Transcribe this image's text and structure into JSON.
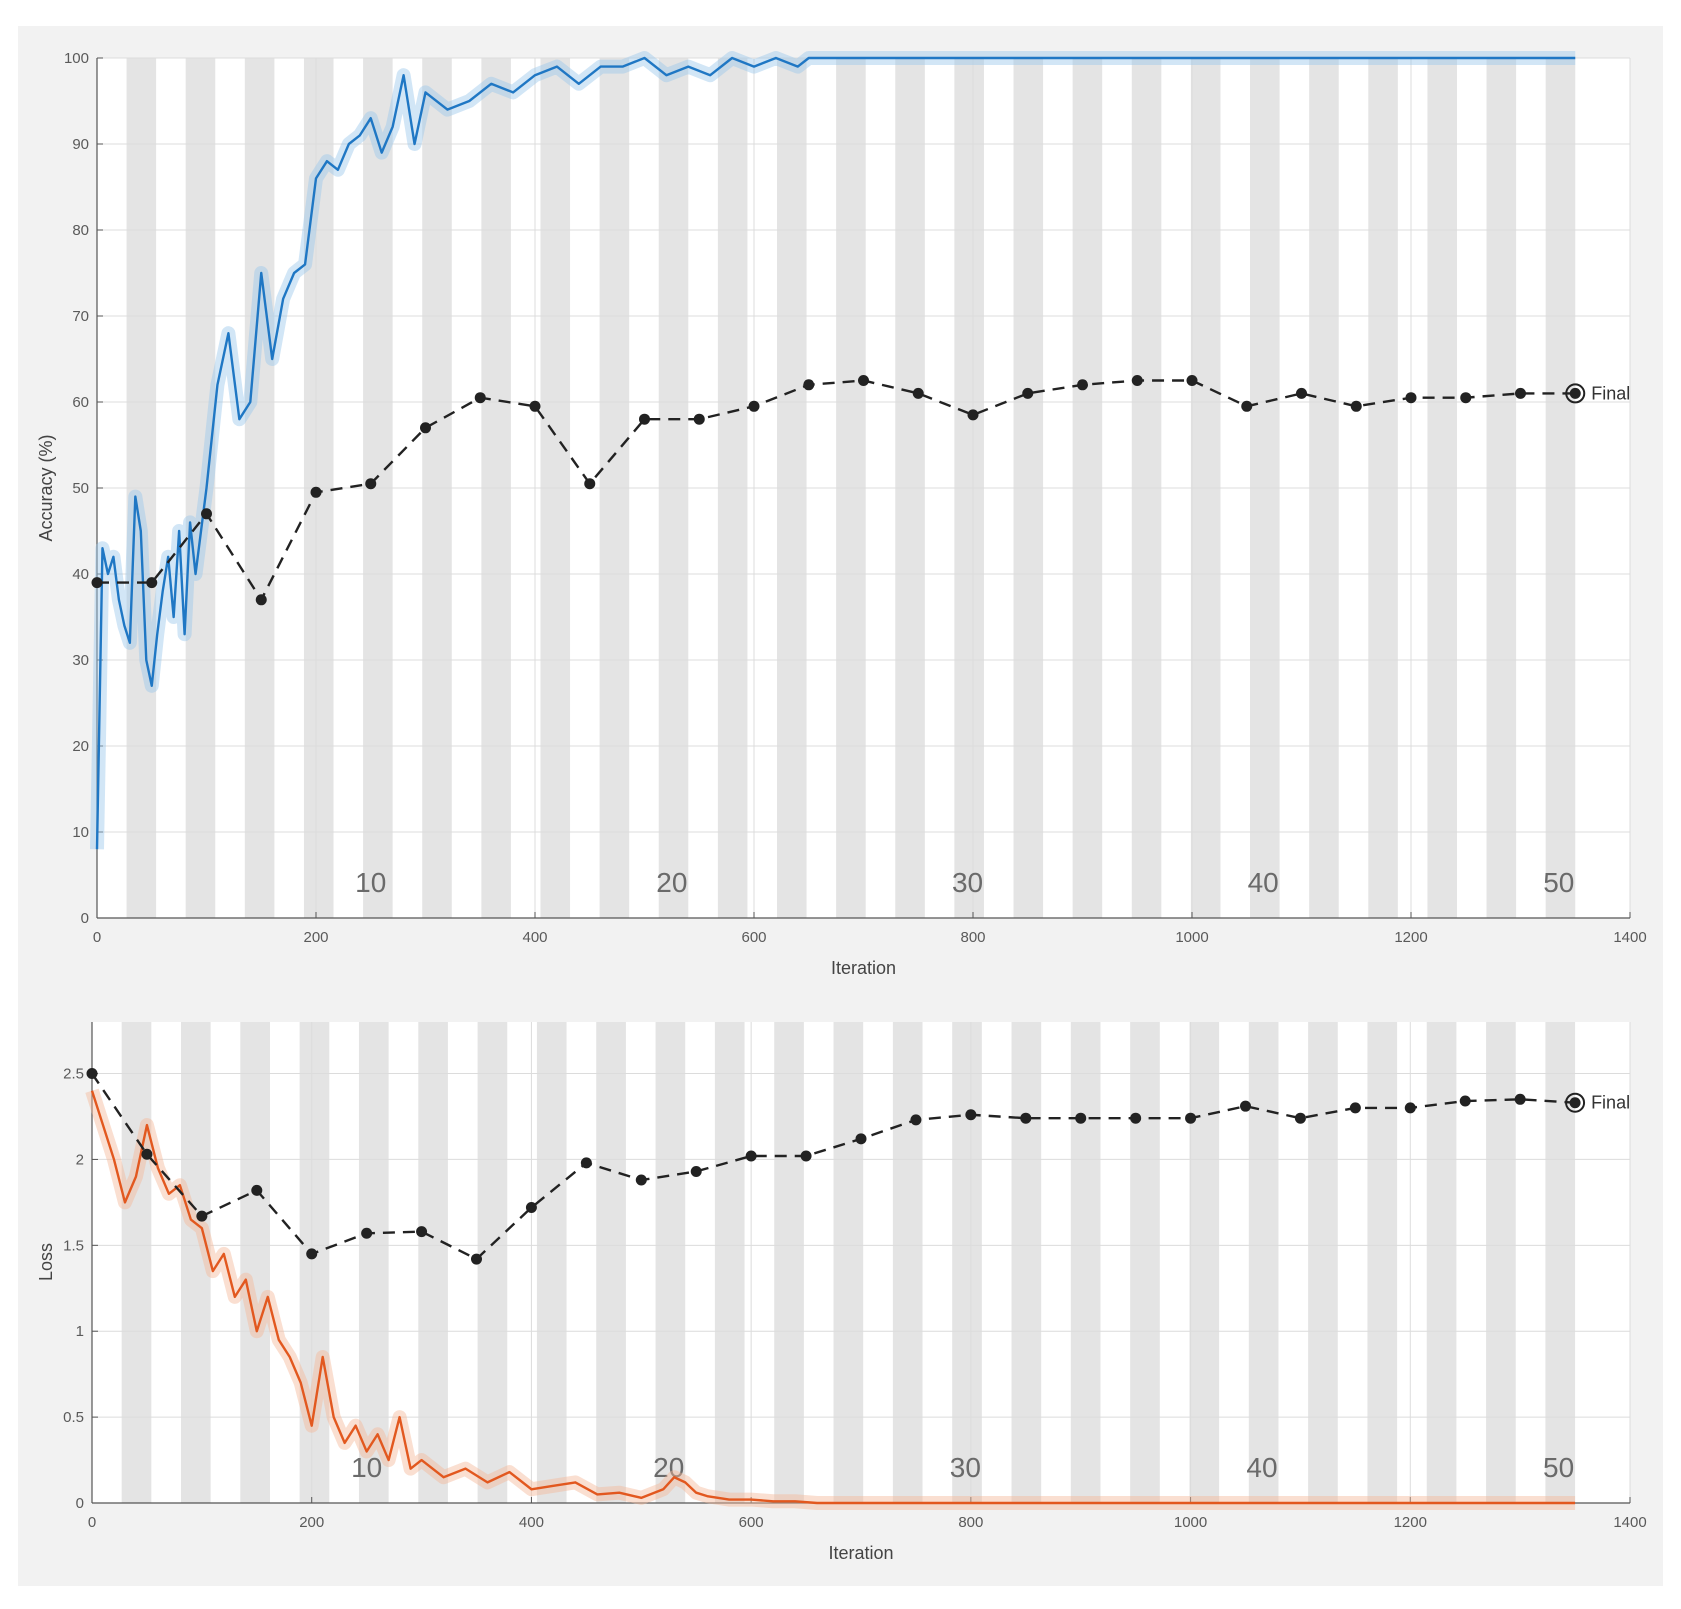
{
  "chart_data": [
    {
      "type": "line",
      "xlabel": "Iteration",
      "ylabel": "Accuracy (%)",
      "xlim": [
        0,
        1400
      ],
      "ylim": [
        0,
        100
      ],
      "xticks": [
        "0",
        "200",
        "400",
        "600",
        "800",
        "1000",
        "1200",
        "1400"
      ],
      "yticks": [
        "0",
        "10",
        "20",
        "30",
        "40",
        "50",
        "60",
        "70",
        "80",
        "90",
        "100"
      ],
      "grid": true,
      "epoch_labels": [
        {
          "x": 250,
          "text": "10"
        },
        {
          "x": 525,
          "text": "20"
        },
        {
          "x": 795,
          "text": "30"
        },
        {
          "x": 1065,
          "text": "40"
        },
        {
          "x": 1335,
          "text": "50"
        }
      ],
      "epoch_band_width": 27,
      "epoch_count": 50,
      "final_label": "Final",
      "colors": {
        "train": "#1f77c4",
        "train_band": "#9cc8ea",
        "validation": "#222222"
      },
      "series": [
        {
          "role": "train",
          "x": [
            0,
            5,
            10,
            15,
            20,
            25,
            30,
            35,
            40,
            45,
            50,
            55,
            60,
            65,
            70,
            75,
            80,
            85,
            90,
            95,
            100,
            110,
            120,
            130,
            140,
            150,
            160,
            170,
            180,
            190,
            200,
            210,
            220,
            230,
            240,
            250,
            260,
            270,
            280,
            290,
            300,
            320,
            340,
            360,
            380,
            400,
            420,
            440,
            460,
            480,
            500,
            520,
            540,
            560,
            580,
            600,
            620,
            640,
            650,
            700,
            800,
            900,
            1000,
            1100,
            1200,
            1300,
            1350
          ],
          "values": [
            8,
            43,
            40,
            42,
            37,
            34,
            32,
            49,
            45,
            30,
            27,
            33,
            38,
            42,
            35,
            45,
            33,
            46,
            40,
            45,
            50,
            62,
            68,
            58,
            60,
            75,
            65,
            72,
            75,
            76,
            86,
            88,
            87,
            90,
            91,
            93,
            89,
            92,
            98,
            90,
            96,
            94,
            95,
            97,
            96,
            98,
            99,
            97,
            99,
            99,
            100,
            98,
            99,
            98,
            100,
            99,
            100,
            99,
            100,
            100,
            100,
            100,
            100,
            100,
            100,
            100,
            100
          ]
        },
        {
          "role": "validation",
          "x": [
            0,
            50,
            100,
            150,
            200,
            250,
            300,
            350,
            400,
            450,
            500,
            550,
            600,
            650,
            700,
            750,
            800,
            850,
            900,
            950,
            1000,
            1050,
            1100,
            1150,
            1200,
            1250,
            1300,
            1350
          ],
          "values": [
            39,
            39,
            47,
            37,
            49.5,
            50.5,
            57,
            60.5,
            59.5,
            50.5,
            58,
            58,
            59.5,
            62,
            62.5,
            61,
            58.5,
            61,
            62,
            62.5,
            62.5,
            59.5,
            61,
            59.5,
            60.5,
            60.5,
            61,
            61
          ]
        }
      ]
    },
    {
      "type": "line",
      "xlabel": "Iteration",
      "ylabel": "Loss",
      "xlim": [
        0,
        1400
      ],
      "ylim": [
        0,
        2.8
      ],
      "xticks": [
        "0",
        "200",
        "400",
        "600",
        "800",
        "1000",
        "1200",
        "1400"
      ],
      "yticks": [
        "0",
        "0.5",
        "1",
        "1.5",
        "2",
        "2.5"
      ],
      "grid": true,
      "epoch_labels": [
        {
          "x": 250,
          "text": "10"
        },
        {
          "x": 525,
          "text": "20"
        },
        {
          "x": 795,
          "text": "30"
        },
        {
          "x": 1065,
          "text": "40"
        },
        {
          "x": 1335,
          "text": "50"
        }
      ],
      "epoch_band_width": 27,
      "epoch_count": 50,
      "final_label": "Final",
      "colors": {
        "train": "#e2581f",
        "train_band": "#f4b99a",
        "validation": "#222222"
      },
      "series": [
        {
          "role": "train",
          "x": [
            0,
            10,
            20,
            30,
            40,
            50,
            60,
            70,
            80,
            90,
            100,
            110,
            120,
            130,
            140,
            150,
            160,
            170,
            180,
            190,
            200,
            210,
            220,
            230,
            240,
            250,
            260,
            270,
            280,
            290,
            300,
            320,
            340,
            360,
            380,
            400,
            420,
            440,
            460,
            480,
            500,
            520,
            530,
            540,
            550,
            560,
            580,
            600,
            620,
            640,
            660,
            700,
            800,
            900,
            1000,
            1100,
            1200,
            1300,
            1350
          ],
          "values": [
            2.4,
            2.2,
            2.0,
            1.75,
            1.9,
            2.2,
            1.95,
            1.8,
            1.85,
            1.65,
            1.6,
            1.35,
            1.45,
            1.2,
            1.3,
            1.0,
            1.2,
            0.95,
            0.85,
            0.7,
            0.45,
            0.85,
            0.5,
            0.35,
            0.45,
            0.3,
            0.4,
            0.25,
            0.5,
            0.2,
            0.25,
            0.15,
            0.2,
            0.12,
            0.18,
            0.08,
            0.1,
            0.12,
            0.05,
            0.06,
            0.03,
            0.08,
            0.15,
            0.12,
            0.06,
            0.04,
            0.02,
            0.02,
            0.01,
            0.01,
            0,
            0,
            0,
            0,
            0,
            0,
            0,
            0,
            0
          ]
        },
        {
          "role": "validation",
          "x": [
            0,
            50,
            100,
            150,
            200,
            250,
            300,
            350,
            400,
            450,
            500,
            550,
            600,
            650,
            700,
            750,
            800,
            850,
            900,
            950,
            1000,
            1050,
            1100,
            1150,
            1200,
            1250,
            1300,
            1350
          ],
          "values": [
            2.5,
            2.03,
            1.67,
            1.82,
            1.45,
            1.57,
            1.58,
            1.42,
            1.72,
            1.98,
            1.88,
            1.93,
            2.02,
            2.02,
            2.12,
            2.23,
            2.26,
            2.24,
            2.24,
            2.24,
            2.24,
            2.31,
            2.24,
            2.3,
            2.3,
            2.34,
            2.35,
            2.33
          ]
        }
      ]
    }
  ]
}
